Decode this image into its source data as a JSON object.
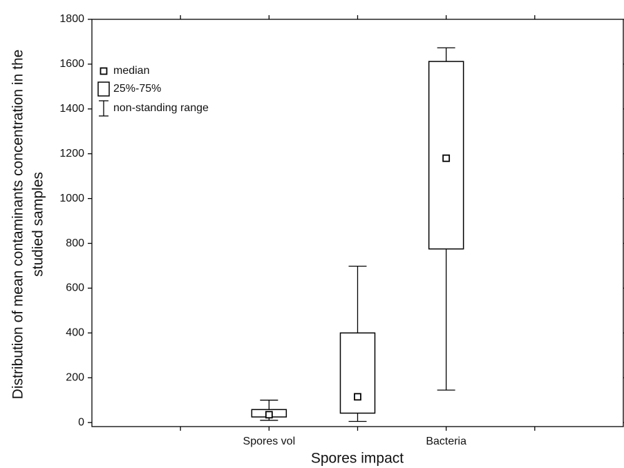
{
  "chart_data": {
    "type": "box",
    "xlabel": "Spores impact",
    "ylabel": [
      "Distribution of mean contaminants concentration in the",
      "studied samples"
    ],
    "categories": [
      null,
      "Spores vol",
      null,
      "Bacteria",
      null
    ],
    "min": [
      null,
      10,
      5,
      145,
      null
    ],
    "q1": [
      null,
      25,
      42,
      775,
      null
    ],
    "median": [
      null,
      35,
      115,
      1180,
      null
    ],
    "q3": [
      null,
      58,
      400,
      1612,
      null
    ],
    "max": [
      null,
      100,
      698,
      1673,
      null
    ],
    "legend": [
      "median",
      "25%-75%",
      "non-standing range"
    ],
    "legend_position": "upper left",
    "color": "#000000",
    "ylim": [
      -18,
      1800
    ],
    "yticks": [
      0,
      200,
      400,
      600,
      800,
      1000,
      1200,
      1400,
      1600,
      1800
    ]
  }
}
